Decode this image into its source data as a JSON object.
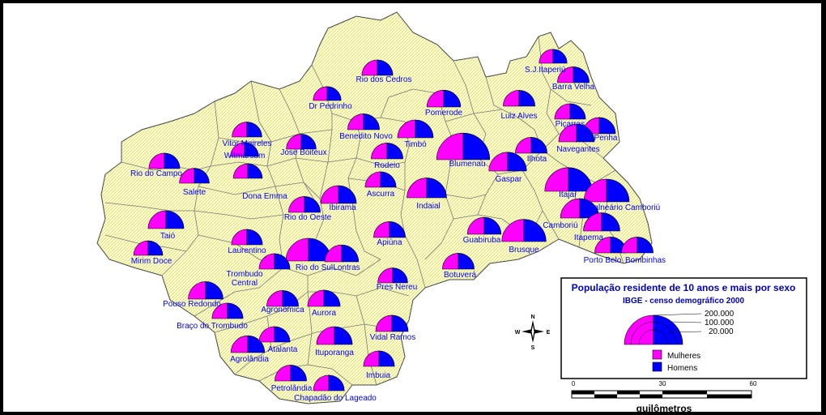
{
  "colors": {
    "mulheres": "#ff00ff",
    "homens": "#0000ff",
    "region_fill": "#ffffcc",
    "border": "#555555",
    "background": "#ffffff",
    "label": "#0000ff"
  },
  "municipalities": [
    {
      "name": "S.J.Itaperiú",
      "size": 0.3
    },
    {
      "name": "Barra Velha",
      "size": 0.4
    },
    {
      "name": "Rio dos Cedros",
      "size": 0.38
    },
    {
      "name": "Dr Pedrinho",
      "size": 0.3
    },
    {
      "name": "Pomerode",
      "size": 0.45
    },
    {
      "name": "Luiz Alves",
      "size": 0.4
    },
    {
      "name": "Piçarras",
      "size": 0.38
    },
    {
      "name": "Penha",
      "size": 0.42
    },
    {
      "name": "Vitor Meireles",
      "size": 0.35
    },
    {
      "name": "Witmarsum",
      "size": 0.3
    },
    {
      "name": "José Boiteux",
      "size": 0.35
    },
    {
      "name": "Benedito Novo",
      "size": 0.4
    },
    {
      "name": "Timbó",
      "size": 0.5
    },
    {
      "name": "Navegantes",
      "size": 0.5
    },
    {
      "name": "Rio do Campo",
      "size": 0.38
    },
    {
      "name": "Rodeio",
      "size": 0.4
    },
    {
      "name": "Blumenau",
      "size": 0.95
    },
    {
      "name": "Ilhota",
      "size": 0.4
    },
    {
      "name": "Salete",
      "size": 0.35
    },
    {
      "name": "Dona Emma",
      "size": 0.33
    },
    {
      "name": "Gaspar",
      "size": 0.55
    },
    {
      "name": "Ascurra",
      "size": 0.38
    },
    {
      "name": "Itajaí",
      "size": 0.8
    },
    {
      "name": "Balneário Camboriú",
      "size": 0.75
    },
    {
      "name": "Rio do Oeste",
      "size": 0.4
    },
    {
      "name": "Ibirama",
      "size": 0.5
    },
    {
      "name": "Indaial",
      "size": 0.6
    },
    {
      "name": "Camboriú",
      "size": 0.58
    },
    {
      "name": "Taió",
      "size": 0.5
    },
    {
      "name": "Itapema",
      "size": 0.52
    },
    {
      "name": "Guabiruba",
      "size": 0.45
    },
    {
      "name": "Laurentino",
      "size": 0.38
    },
    {
      "name": "Apiúna",
      "size": 0.4
    },
    {
      "name": "Brusque",
      "size": 0.72
    },
    {
      "name": "Porto Belo",
      "size": 0.4
    },
    {
      "name": "Bombinhas",
      "size": 0.4
    },
    {
      "name": "Mirim Doce",
      "size": 0.33
    },
    {
      "name": "Rio do Sul",
      "size": 0.75
    },
    {
      "name": "Lontras",
      "size": 0.45
    },
    {
      "name": "Botuverá",
      "size": 0.4
    },
    {
      "name": "Trombudo Central",
      "size": 0.38
    },
    {
      "name": "Pres Nereu",
      "size": 0.35
    },
    {
      "name": "Pouso Redondo",
      "size": 0.48
    },
    {
      "name": "Agronômica",
      "size": 0.4
    },
    {
      "name": "Aurora",
      "size": 0.42
    },
    {
      "name": "Braço do Trombudo",
      "size": 0.38
    },
    {
      "name": "Vidal Ramos",
      "size": 0.42
    },
    {
      "name": "Atalanta",
      "size": 0.38
    },
    {
      "name": "Agrolândia",
      "size": 0.45
    },
    {
      "name": "Ituporanga",
      "size": 0.5
    },
    {
      "name": "Imbuia",
      "size": 0.38
    },
    {
      "name": "Petrolândia",
      "size": 0.4
    },
    {
      "name": "Chapadão do Lageado",
      "size": 0.38
    }
  ],
  "legend": {
    "title": "População residente de 10 anos e mais por sexo",
    "subtitle": "IBGE - censo demográfico 2000",
    "sizes": [
      "200.000",
      "100.000",
      "20.000"
    ],
    "items": [
      {
        "label": "Mulheres",
        "color": "#ff00ff"
      },
      {
        "label": "Homens",
        "color": "#0000ff"
      }
    ]
  },
  "scale": {
    "ticks": [
      "0",
      "30",
      "60"
    ],
    "unit": "quilômetros"
  },
  "compass": {
    "n": "N",
    "s": "S",
    "e": "E",
    "w": "W"
  }
}
